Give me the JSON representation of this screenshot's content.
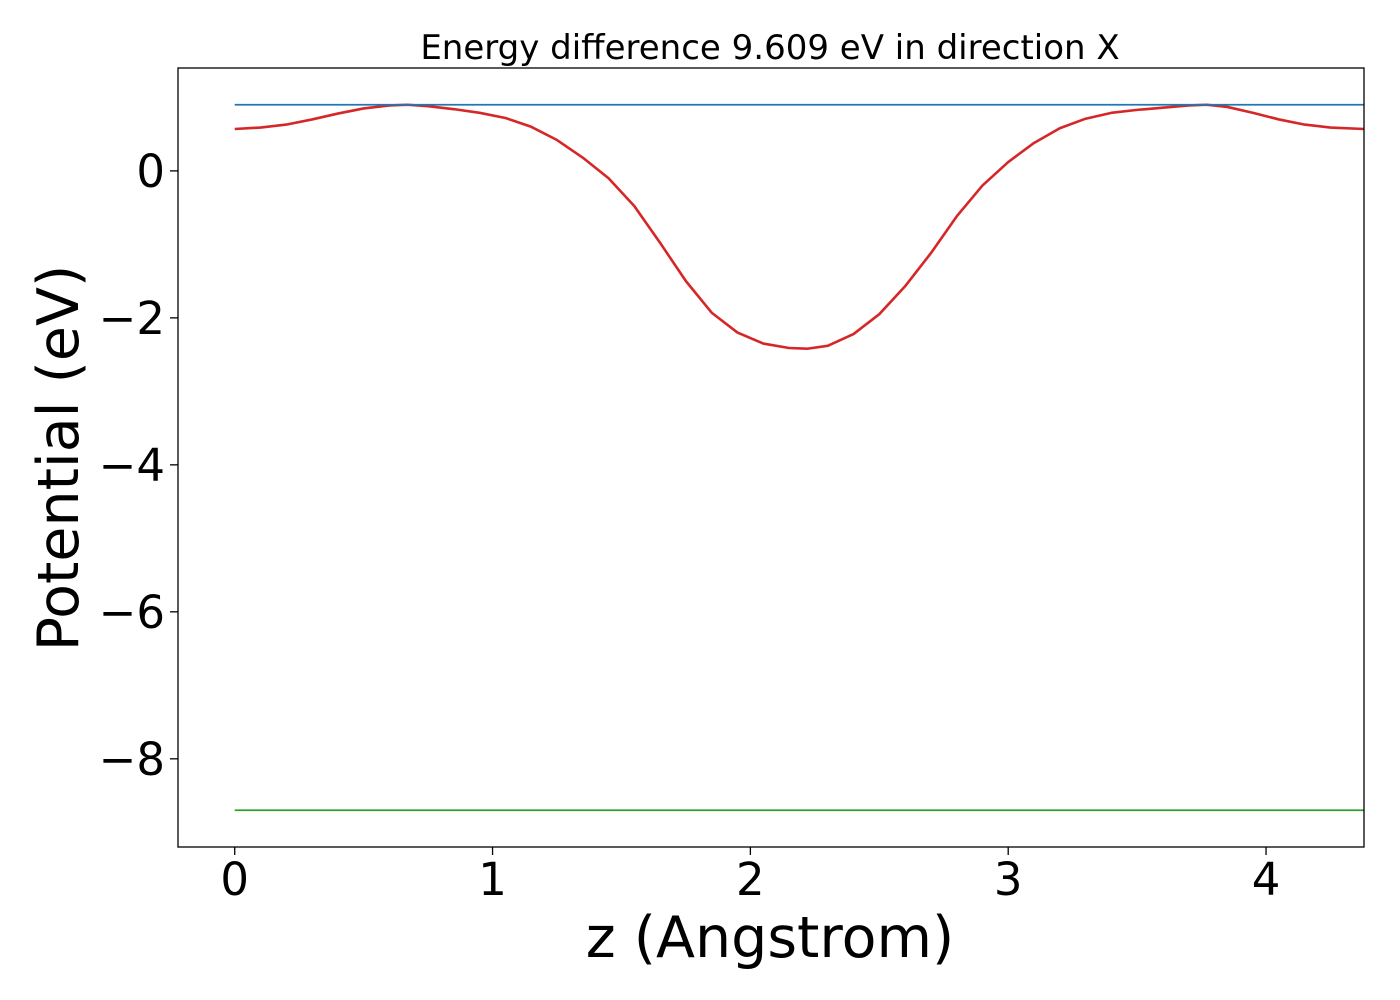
{
  "chart_data": {
    "type": "line",
    "title": "Energy difference 9.609 eV in direction X",
    "xlabel": "z (Angstrom)",
    "ylabel": "Potential (eV)",
    "xlim": [
      -0.22,
      4.38
    ],
    "ylim": [
      -9.2,
      1.4
    ],
    "x_ticks": [
      0,
      1,
      2,
      3,
      4
    ],
    "x_tick_labels": [
      "0",
      "1",
      "2",
      "3",
      "4"
    ],
    "y_ticks": [
      0,
      -2,
      -4,
      -6,
      -8
    ],
    "y_tick_labels": [
      "0",
      "−2",
      "−4",
      "−6",
      "−8"
    ],
    "grid": false,
    "legend": "none",
    "series": [
      {
        "color": "#d62728",
        "x": [
          0,
          0.1,
          0.2,
          0.3,
          0.4,
          0.5,
          0.6,
          0.67,
          0.75,
          0.85,
          0.95,
          1.05,
          1.15,
          1.25,
          1.35,
          1.45,
          1.55,
          1.65,
          1.75,
          1.85,
          1.95,
          2.05,
          2.15,
          2.22,
          2.3,
          2.4,
          2.5,
          2.6,
          2.7,
          2.8,
          2.9,
          3.0,
          3.1,
          3.2,
          3.3,
          3.4,
          3.5,
          3.6,
          3.7,
          3.77,
          3.85,
          3.95,
          4.05,
          4.15,
          4.25,
          4.38
        ],
        "y": [
          0.57,
          0.59,
          0.63,
          0.7,
          0.78,
          0.85,
          0.89,
          0.9,
          0.88,
          0.84,
          0.79,
          0.72,
          0.6,
          0.42,
          0.18,
          -0.1,
          -0.48,
          -0.98,
          -1.5,
          -1.93,
          -2.2,
          -2.35,
          -2.41,
          -2.42,
          -2.38,
          -2.22,
          -1.95,
          -1.57,
          -1.12,
          -0.62,
          -0.2,
          0.12,
          0.38,
          0.58,
          0.71,
          0.79,
          0.83,
          0.86,
          0.89,
          0.9,
          0.87,
          0.79,
          0.7,
          0.63,
          0.59,
          0.57
        ]
      },
      {
        "color": "#1f77b4",
        "x": [
          0,
          4.38
        ],
        "y": [
          0.9,
          0.9
        ]
      },
      {
        "color": "#2ca02c",
        "x": [
          0,
          4.38
        ],
        "y": [
          -8.7,
          -8.7
        ]
      }
    ]
  }
}
